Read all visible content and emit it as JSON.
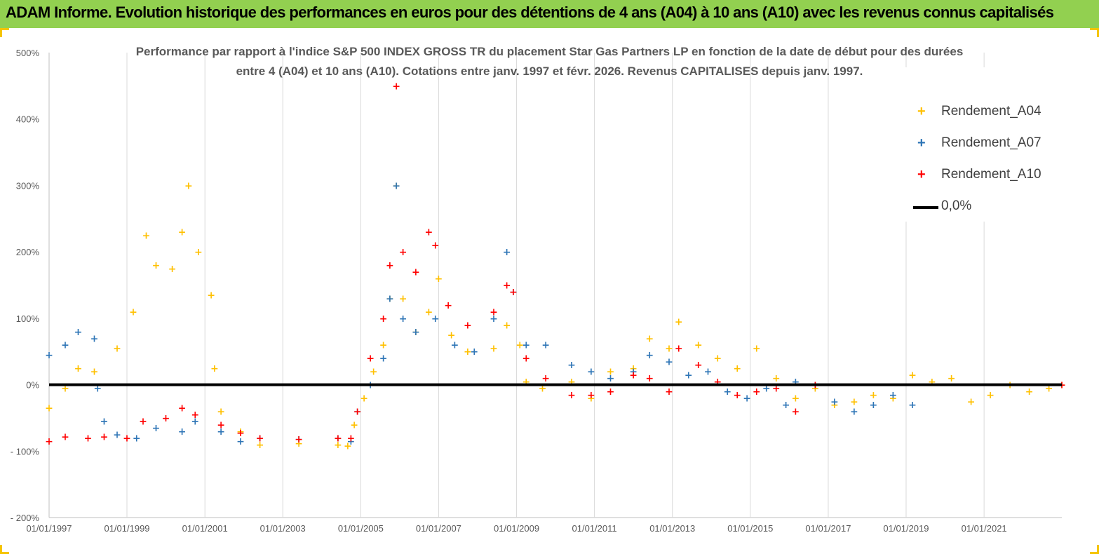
{
  "header": {
    "banner": "ADAM Informe. Evolution historique des performances en euros pour des détentions de 4 ans (A04) à 10 ans (A10) avec les revenus connus capitalisés",
    "banner_color": "#92d050"
  },
  "chart_data": {
    "type": "scatter",
    "title_line1": "Performance par rapport à l'indice S&P 500 INDEX GROSS TR  du placement Star Gas Partners LP  en fonction de la date de début pour des durées",
    "title_line2": "entre 4 (A04) et 10 ans (A10).  Cotations entre janv. 1997 et févr. 2026. Revenus  CAPITALISES depuis janv. 1997.",
    "ylim": [
      -200,
      500
    ],
    "yticks": [
      -200,
      -100,
      0,
      100,
      200,
      300,
      400,
      500
    ],
    "ytick_labels": [
      "- 200%",
      "- 100%",
      "0%",
      "100%",
      "200%",
      "300%",
      "400%",
      "500%"
    ],
    "xlim": [
      "01/01/1997",
      "31/12/2022"
    ],
    "xtick_labels": [
      "01/01/1997",
      "01/01/1999",
      "01/01/2001",
      "01/01/2003",
      "01/01/2005",
      "01/01/2007",
      "01/01/2009",
      "01/01/2011",
      "01/01/2013",
      "01/01/2015",
      "01/01/2017",
      "01/01/2019",
      "01/01/2021"
    ],
    "grid": "vertical",
    "legend_position": "top-right",
    "series": [
      {
        "name": "Rendement_A04",
        "color": "#ffc000",
        "marker": "+",
        "points": [
          [
            "01/01/1997",
            -35
          ],
          [
            "01/06/1997",
            -5
          ],
          [
            "01/10/1997",
            25
          ],
          [
            "01/03/1998",
            20
          ],
          [
            "01/10/1998",
            55
          ],
          [
            "01/03/1999",
            110
          ],
          [
            "01/07/1999",
            225
          ],
          [
            "01/10/1999",
            180
          ],
          [
            "01/03/2000",
            175
          ],
          [
            "01/06/2000",
            230
          ],
          [
            "01/08/2000",
            300
          ],
          [
            "01/11/2000",
            200
          ],
          [
            "01/03/2001",
            135
          ],
          [
            "01/04/2001",
            25
          ],
          [
            "01/06/2001",
            -40
          ],
          [
            "01/12/2001",
            -70
          ],
          [
            "01/06/2002",
            -90
          ],
          [
            "01/06/2003",
            -88
          ],
          [
            "01/06/2004",
            -90
          ],
          [
            "01/09/2004",
            -92
          ],
          [
            "01/11/2004",
            -60
          ],
          [
            "01/02/2005",
            -20
          ],
          [
            "01/05/2005",
            20
          ],
          [
            "01/08/2005",
            60
          ],
          [
            "01/10/2005",
            130
          ],
          [
            "01/12/2005",
            300
          ],
          [
            "01/02/2006",
            130
          ],
          [
            "01/06/2006",
            80
          ],
          [
            "01/10/2006",
            110
          ],
          [
            "01/01/2007",
            160
          ],
          [
            "01/05/2007",
            75
          ],
          [
            "01/10/2007",
            50
          ],
          [
            "01/06/2008",
            55
          ],
          [
            "01/10/2008",
            90
          ],
          [
            "01/02/2009",
            60
          ],
          [
            "01/04/2009",
            5
          ],
          [
            "01/09/2009",
            -5
          ],
          [
            "01/06/2010",
            5
          ],
          [
            "01/12/2010",
            -20
          ],
          [
            "01/06/2011",
            20
          ],
          [
            "01/01/2012",
            25
          ],
          [
            "01/06/2012",
            70
          ],
          [
            "01/12/2012",
            55
          ],
          [
            "01/03/2013",
            95
          ],
          [
            "01/09/2013",
            60
          ],
          [
            "01/03/2014",
            40
          ],
          [
            "01/09/2014",
            25
          ],
          [
            "01/03/2015",
            55
          ],
          [
            "01/09/2015",
            10
          ],
          [
            "01/03/2016",
            -20
          ],
          [
            "01/09/2016",
            -5
          ],
          [
            "01/03/2017",
            -30
          ],
          [
            "01/09/2017",
            -25
          ],
          [
            "01/03/2018",
            -15
          ],
          [
            "01/09/2018",
            -20
          ],
          [
            "01/03/2019",
            15
          ],
          [
            "01/09/2019",
            5
          ],
          [
            "01/03/2020",
            10
          ],
          [
            "01/09/2020",
            -25
          ],
          [
            "01/03/2021",
            -15
          ],
          [
            "01/09/2021",
            0
          ],
          [
            "01/03/2022",
            -10
          ],
          [
            "01/09/2022",
            -5
          ],
          [
            "31/12/2022",
            0
          ]
        ]
      },
      {
        "name": "Rendement_A07",
        "color": "#2e75b6",
        "marker": "+",
        "points": [
          [
            "01/01/1997",
            45
          ],
          [
            "01/06/1997",
            60
          ],
          [
            "01/10/1997",
            80
          ],
          [
            "01/03/1998",
            70
          ],
          [
            "01/04/1998",
            -5
          ],
          [
            "01/06/1998",
            -55
          ],
          [
            "01/10/1998",
            -75
          ],
          [
            "01/04/1999",
            -80
          ],
          [
            "01/10/1999",
            -65
          ],
          [
            "01/06/2000",
            -70
          ],
          [
            "01/10/2000",
            -55
          ],
          [
            "01/06/2001",
            -70
          ],
          [
            "01/12/2001",
            -85
          ],
          [
            "01/06/2002",
            -80
          ],
          [
            "01/06/2003",
            -82
          ],
          [
            "01/06/2004",
            -80
          ],
          [
            "01/10/2004",
            -85
          ],
          [
            "01/12/2004",
            -40
          ],
          [
            "01/04/2005",
            0
          ],
          [
            "01/08/2005",
            40
          ],
          [
            "01/10/2005",
            130
          ],
          [
            "01/12/2005",
            300
          ],
          [
            "01/02/2006",
            100
          ],
          [
            "01/06/2006",
            80
          ],
          [
            "01/12/2006",
            100
          ],
          [
            "01/06/2007",
            60
          ],
          [
            "01/12/2007",
            50
          ],
          [
            "01/06/2008",
            100
          ],
          [
            "01/10/2008",
            200
          ],
          [
            "01/12/2008",
            140
          ],
          [
            "01/04/2009",
            60
          ],
          [
            "01/10/2009",
            60
          ],
          [
            "01/06/2010",
            30
          ],
          [
            "01/12/2010",
            20
          ],
          [
            "01/06/2011",
            10
          ],
          [
            "01/01/2012",
            20
          ],
          [
            "01/06/2012",
            45
          ],
          [
            "01/12/2012",
            35
          ],
          [
            "01/06/2013",
            15
          ],
          [
            "01/12/2013",
            20
          ],
          [
            "01/06/2014",
            -10
          ],
          [
            "01/12/2014",
            -20
          ],
          [
            "01/06/2015",
            -5
          ],
          [
            "01/12/2015",
            -30
          ],
          [
            "01/03/2016",
            5
          ],
          [
            "01/09/2016",
            0
          ],
          [
            "01/03/2017",
            -25
          ],
          [
            "01/09/2017",
            -40
          ],
          [
            "01/03/2018",
            -30
          ],
          [
            "01/09/2018",
            -15
          ],
          [
            "01/03/2019",
            -30
          ]
        ]
      },
      {
        "name": "Rendement_A10",
        "color": "#ff0000",
        "marker": "+",
        "points": [
          [
            "01/01/1997",
            -85
          ],
          [
            "01/06/1997",
            -78
          ],
          [
            "01/01/1998",
            -80
          ],
          [
            "01/06/1998",
            -78
          ],
          [
            "01/01/1999",
            -80
          ],
          [
            "01/06/1999",
            -55
          ],
          [
            "01/01/2000",
            -50
          ],
          [
            "01/06/2000",
            -35
          ],
          [
            "01/10/2000",
            -45
          ],
          [
            "01/06/2001",
            -60
          ],
          [
            "01/12/2001",
            -72
          ],
          [
            "01/06/2002",
            -80
          ],
          [
            "01/06/2003",
            -82
          ],
          [
            "01/06/2004",
            -80
          ],
          [
            "01/10/2004",
            -80
          ],
          [
            "01/12/2004",
            -40
          ],
          [
            "01/04/2005",
            40
          ],
          [
            "01/08/2005",
            100
          ],
          [
            "01/10/2005",
            180
          ],
          [
            "01/12/2005",
            450
          ],
          [
            "01/02/2006",
            200
          ],
          [
            "01/06/2006",
            170
          ],
          [
            "01/10/2006",
            230
          ],
          [
            "01/12/2006",
            210
          ],
          [
            "01/04/2007",
            120
          ],
          [
            "01/10/2007",
            90
          ],
          [
            "01/06/2008",
            110
          ],
          [
            "01/10/2008",
            150
          ],
          [
            "01/12/2008",
            140
          ],
          [
            "01/04/2009",
            40
          ],
          [
            "01/10/2009",
            10
          ],
          [
            "01/06/2010",
            -15
          ],
          [
            "01/12/2010",
            -15
          ],
          [
            "01/06/2011",
            -10
          ],
          [
            "01/01/2012",
            15
          ],
          [
            "01/06/2012",
            10
          ],
          [
            "01/12/2012",
            -10
          ],
          [
            "01/03/2013",
            55
          ],
          [
            "01/09/2013",
            30
          ],
          [
            "01/03/2014",
            5
          ],
          [
            "01/09/2014",
            -15
          ],
          [
            "01/03/2015",
            -10
          ],
          [
            "01/09/2015",
            -5
          ],
          [
            "01/03/2016",
            -40
          ],
          [
            "01/09/2016",
            0
          ],
          [
            "31/12/2022",
            0
          ]
        ]
      }
    ],
    "reference_line": {
      "name": "0,0%",
      "value": 0,
      "color": "#000000"
    }
  }
}
